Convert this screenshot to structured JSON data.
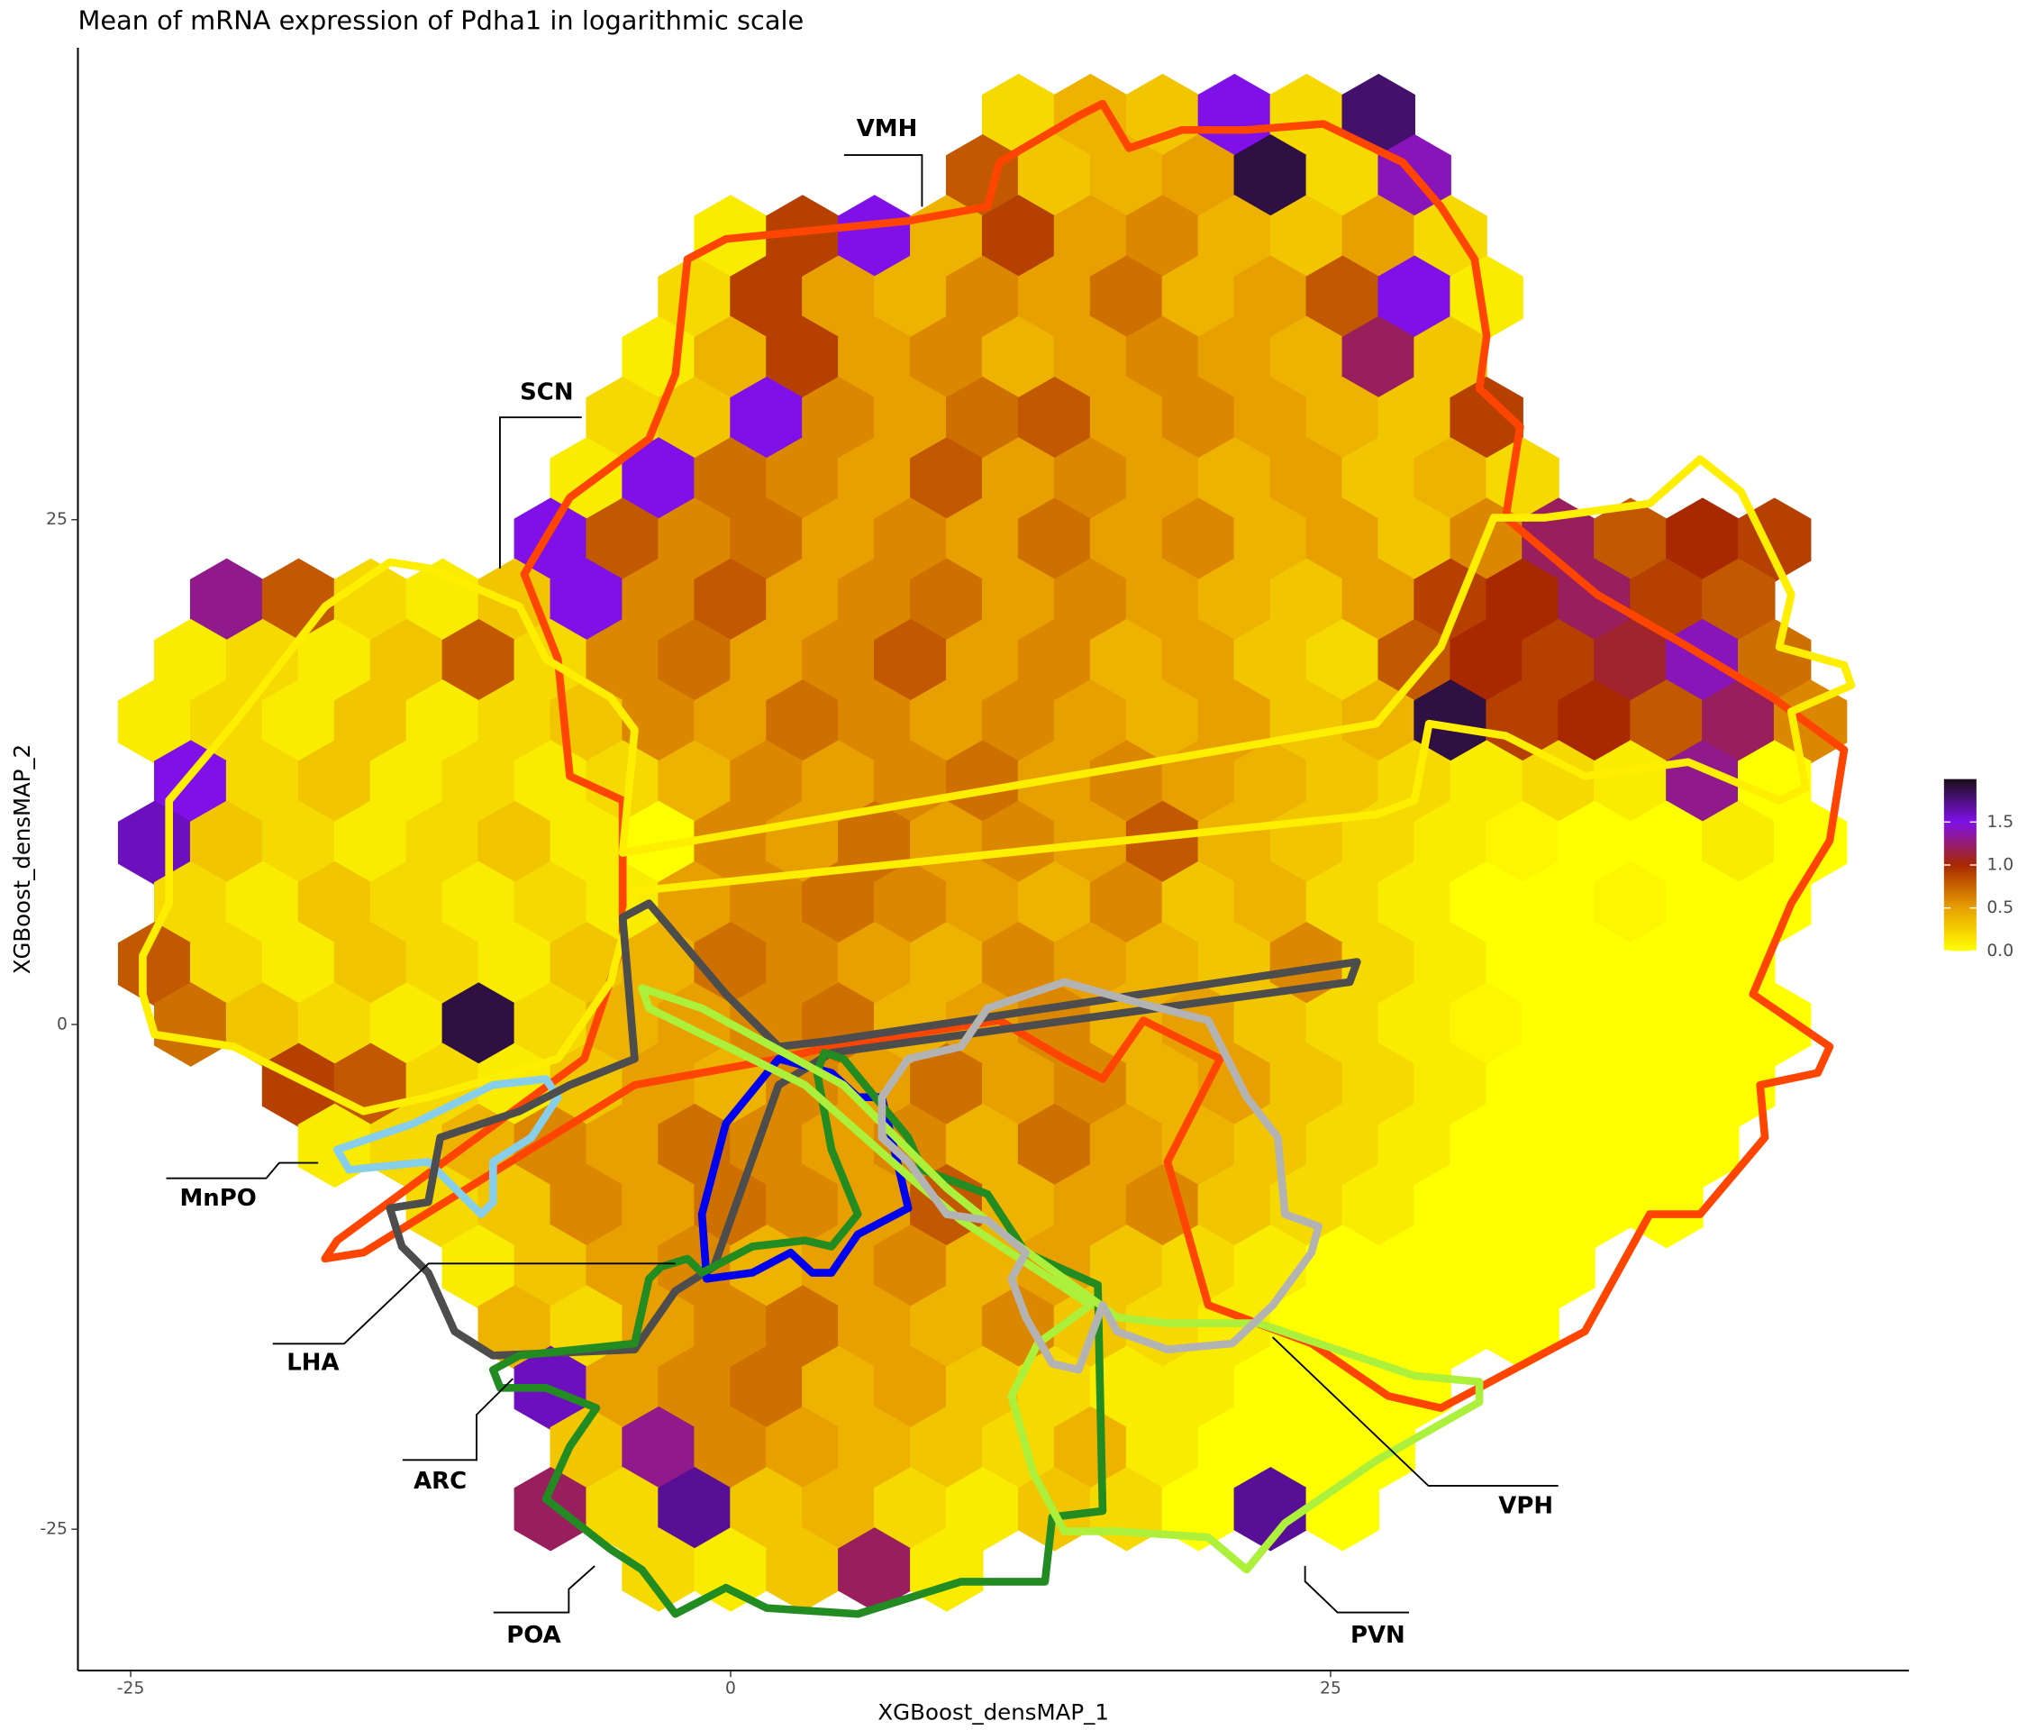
{
  "chart_data": {
    "type": "hexbin",
    "title": "Mean of mRNA expression of Pdha1 in logarithmic scale",
    "x_label": "XGBoost_densMAP_1",
    "y_label": "XGBoost_densMAP_2",
    "xlim": [
      -27.2,
      49.1
    ],
    "ylim": [
      -32,
      48.5
    ],
    "xticks": [
      -25,
      0,
      25
    ],
    "yticks": [
      -25,
      0,
      25
    ],
    "grid": false,
    "binwidth": [
      3,
      3
    ],
    "clim": [
      0,
      2
    ],
    "colorscale": [
      "#ffff00",
      "#e8a000",
      "#a82800",
      "#8010e8",
      "#1a1018"
    ],
    "cticks": [
      {
        "value": 0,
        "label": "0.0"
      },
      {
        "value": 0.5,
        "label": "0.5"
      },
      {
        "value": 1,
        "label": "1.0"
      },
      {
        "value": 1.5,
        "label": "1.5"
      }
    ],
    "legend_position": "right",
    "rows": [
      {
        "y": 45,
        "x0": 12,
        "values": [
          0.2,
          0.4,
          0.3,
          1.5,
          0.2,
          1.8
        ]
      },
      {
        "y": 42,
        "x0": 10.5,
        "values": [
          0.8,
          0.3,
          0.4,
          0.5,
          1.9,
          0.2,
          1.4
        ]
      },
      {
        "y": 39,
        "x0": 0,
        "values": [
          0.1,
          0.9,
          1.5,
          0.4,
          0.9,
          0.5,
          0.6,
          0.4,
          0.3,
          0.5,
          0.2
        ]
      },
      {
        "y": 36,
        "x0": -1.5,
        "values": [
          0.2,
          0.9,
          0.5,
          0.4,
          0.6,
          0.5,
          0.7,
          0.4,
          0.5,
          0.8,
          1.5,
          0.1
        ]
      },
      {
        "y": 33,
        "x0": -3,
        "values": [
          0.1,
          0.4,
          0.9,
          0.5,
          0.6,
          0.4,
          0.5,
          0.6,
          0.5,
          0.4,
          1.2,
          0.3
        ]
      },
      {
        "y": 30,
        "x0": -4.5,
        "values": [
          0.2,
          0.3,
          1.5,
          0.6,
          0.5,
          0.7,
          0.8,
          0.5,
          0.6,
          0.5,
          0.4,
          0.3,
          0.9
        ]
      },
      {
        "y": 27,
        "x0": -6,
        "values": [
          0.1,
          1.5,
          0.7,
          0.6,
          0.5,
          0.8,
          0.5,
          0.6,
          0.5,
          0.4,
          0.5,
          0.3,
          0.4,
          0.2
        ]
      },
      {
        "y": 24,
        "x0": -7.5,
        "values": [
          1.5,
          0.8,
          0.6,
          0.7,
          0.5,
          0.6,
          0.5,
          0.7,
          0.5,
          0.6,
          0.4,
          0.5,
          0.3,
          0.6,
          1.2,
          0.8,
          1.0,
          0.9
        ]
      },
      {
        "y": 21,
        "x0": -21,
        "values": [
          1.3,
          0.8,
          0.2,
          0.1,
          0.3,
          1.5,
          0.6,
          0.8,
          0.5,
          0.6,
          0.7,
          0.5,
          0.6,
          0.5,
          0.4,
          0.3,
          0.5,
          0.9,
          1.0,
          1.2,
          0.9,
          0.8
        ]
      },
      {
        "y": 18,
        "x0": -22.5,
        "values": [
          0.1,
          0.2,
          0.1,
          0.3,
          0.8,
          0.2,
          0.6,
          0.7,
          0.5,
          0.6,
          0.8,
          0.5,
          0.6,
          0.4,
          0.5,
          0.3,
          0.2,
          0.8,
          1.0,
          0.9,
          1.1,
          1.4,
          0.7
        ]
      },
      {
        "y": 15,
        "x0": -24,
        "values": [
          0.1,
          0.2,
          0.1,
          0.3,
          0.1,
          0.2,
          0.3,
          0.6,
          0.5,
          0.7,
          0.6,
          0.5,
          0.6,
          0.5,
          0.4,
          0.5,
          0.3,
          0.4,
          1.9,
          0.9,
          1.0,
          0.8,
          1.2,
          0.6
        ]
      },
      {
        "y": 12,
        "x0": -22.5,
        "values": [
          1.5,
          0.2,
          0.3,
          0.1,
          0.2,
          0.1,
          0.2,
          0.4,
          0.6,
          0.5,
          0.6,
          0.7,
          0.5,
          0.6,
          0.5,
          0.4,
          0.3,
          0.2,
          0.1,
          0.2,
          0.1,
          1.3,
          0
        ]
      },
      {
        "y": 9,
        "x0": -24,
        "values": [
          1.6,
          0.3,
          0.2,
          0.1,
          0.2,
          0.3,
          0.1,
          0,
          0.6,
          0.5,
          0.7,
          0.5,
          0.6,
          0.5,
          0.8,
          0.4,
          0.3,
          0.2,
          0.1,
          0.05,
          0,
          0,
          0.1,
          0
        ]
      },
      {
        "y": 6,
        "x0": -22.5,
        "values": [
          0.2,
          0.1,
          0.3,
          0.2,
          0.1,
          0.2,
          0.1,
          0.5,
          0.6,
          0.7,
          0.6,
          0.5,
          0.4,
          0.6,
          0.3,
          0.4,
          0.2,
          0.1,
          0,
          0,
          0.05,
          0,
          0
        ]
      },
      {
        "y": 3,
        "x0": -24,
        "values": [
          0.8,
          0.2,
          0.1,
          0.3,
          0.2,
          0.1,
          0.3,
          0.4,
          0.7,
          0.6,
          0.5,
          0.4,
          0.6,
          0.5,
          0.4,
          0.3,
          0.6,
          0.2,
          0.1,
          0,
          0,
          0,
          0
        ]
      },
      {
        "y": 0,
        "x0": -22.5,
        "values": [
          0.7,
          0.3,
          0.2,
          0.1,
          1.9,
          0.2,
          0.4,
          0.5,
          0.6,
          0.7,
          0.4,
          0.5,
          0.6,
          0.4,
          0.5,
          0.3,
          0.2,
          0.1,
          0.05,
          0,
          0,
          0,
          0
        ]
      },
      {
        "y": -3,
        "x0": -18,
        "values": [
          0.9,
          0.8,
          0.2,
          0.1,
          0.3,
          0.5,
          0.4,
          0.6,
          0.5,
          0.7,
          0.5,
          0.6,
          0.4,
          0.5,
          0.3,
          0.2,
          0.1,
          0,
          0,
          0,
          0
        ]
      },
      {
        "y": -6,
        "x0": -16.5,
        "values": [
          0.1,
          0.2,
          0.4,
          0.6,
          0.5,
          0.7,
          0.6,
          0.5,
          0.6,
          0.4,
          0.7,
          0.5,
          0.4,
          0.3,
          0.2,
          0.1,
          0,
          0,
          0,
          0
        ]
      },
      {
        "y": -9,
        "x0": -12,
        "values": [
          0.2,
          0.3,
          0.6,
          0.5,
          0.7,
          0.6,
          0.5,
          0.8,
          0.4,
          0.5,
          0.6,
          0.3,
          0.2,
          0.1,
          0,
          0,
          0,
          0
        ]
      },
      {
        "y": -12,
        "x0": -10.5,
        "values": [
          0.1,
          0.3,
          0.5,
          0.6,
          0.4,
          0.5,
          0.6,
          0.4,
          0.5,
          0.3,
          0.2,
          0.1,
          0,
          0,
          0,
          0
        ]
      },
      {
        "y": -15,
        "x0": -9,
        "values": [
          0.4,
          0.2,
          0.5,
          0.6,
          0.7,
          0.5,
          0.4,
          0.6,
          0.3,
          0.2,
          0.1,
          0,
          0,
          0,
          0
        ]
      },
      {
        "y": -18,
        "x0": -7.5,
        "values": [
          1.6,
          0.5,
          0.6,
          0.7,
          0.4,
          0.5,
          0.3,
          0.2,
          0.1,
          0.1,
          0,
          0,
          0
        ]
      },
      {
        "y": -21,
        "x0": -6,
        "values": [
          0.3,
          1.3,
          0.6,
          0.5,
          0.4,
          0.3,
          0.2,
          0.4,
          0.1,
          0,
          0,
          0
        ]
      },
      {
        "y": -24,
        "x0": -7.5,
        "values": [
          1.2,
          0.2,
          1.7,
          0.3,
          0.4,
          0.2,
          0.1,
          0.3,
          0.2,
          0,
          1.7,
          0
        ]
      },
      {
        "y": -27,
        "x0": -3,
        "values": [
          0.2,
          0.1,
          0.3,
          1.2,
          0.1
        ]
      }
    ],
    "regions": [
      {
        "name": "VMH",
        "color": "#ff4500",
        "x": [
          -8.6,
          -6.7,
          -3.4,
          -2.3,
          -1.8,
          -0.2,
          7.4,
          10.7,
          11.2,
          14.5,
          15.5,
          16.6,
          18.8,
          21.5,
          24.7,
          28.0,
          29.6,
          31.0,
          31.5,
          31.2,
          32.9,
          32.3,
          36.1,
          39.9,
          43.4,
          46.4,
          45.8,
          44.2,
          42.6,
          45.8,
          45.3,
          42.9,
          43.1,
          40.4,
          38.3,
          35.6,
          29.6,
          27.4,
          24.2,
          19.9,
          18.2,
          20.4,
          17.2,
          15.5,
          13.9,
          11.2,
          4.2,
          2.0,
          -4.0,
          -15.3,
          -16.9,
          -16.4,
          -6.1,
          -4.5,
          -4.5,
          -6.7,
          -7.2
        ],
        "y": [
          22.3,
          26.1,
          29.0,
          32.2,
          37.9,
          38.9,
          39.8,
          40.5,
          42.7,
          45.0,
          45.6,
          43.4,
          44.3,
          44.3,
          44.6,
          42.7,
          40.5,
          37.9,
          34.1,
          31.5,
          29.6,
          25.1,
          21.3,
          18.7,
          16.2,
          13.6,
          9.1,
          6.0,
          1.5,
          -1.1,
          -2.4,
          -3.0,
          -5.6,
          -9.4,
          -9.4,
          -15.2,
          -19.0,
          -18.4,
          -15.8,
          -13.9,
          -6.8,
          -1.7,
          0.2,
          -2.7,
          -1.7,
          0.2,
          -1.1,
          -1.7,
          -3.0,
          -11.3,
          -11.6,
          -10.7,
          -1.7,
          4.0,
          11.1,
          12.3,
          18.1
        ]
      },
      {
        "name": "SCN",
        "color": "#ffee00",
        "x": [
          -24.5,
          -24.5,
          -23.4,
          -23.4,
          -20.7,
          -16.9,
          -14.2,
          -12.6,
          -8.8,
          -7.7,
          -5.0,
          -4.0,
          -4.5,
          26.9,
          29.6,
          31.8,
          33.9,
          38.3,
          40.4,
          42.1,
          44.2,
          43.7,
          46.4,
          46.7,
          44.2,
          44.8,
          43.7,
          39.9,
          35.6,
          32.3,
          29.1,
          28.5,
          26.9,
          -4.0,
          -5.0,
          -7.2,
          -12.6,
          -15.3,
          -17.5,
          -20.7,
          -24.0
        ],
        "y": [
          1.5,
          3.4,
          6.0,
          11.1,
          14.9,
          20.7,
          22.9,
          22.6,
          20.7,
          18.1,
          16.2,
          14.6,
          8.5,
          14.9,
          18.7,
          25.1,
          25.1,
          25.8,
          28.0,
          26.4,
          21.3,
          18.7,
          17.8,
          16.8,
          15.5,
          11.7,
          11.1,
          13.0,
          12.3,
          14.3,
          14.9,
          11.1,
          10.4,
          6.6,
          2.1,
          -1.7,
          -3.6,
          -4.3,
          -3.0,
          -1.1,
          -0.5
        ]
      },
      {
        "name": "MnPO",
        "color": "#87ceeb",
        "x": [
          -16.4,
          -13.2,
          -9.9,
          -7.7,
          -7.2,
          -8.3,
          -9.9,
          -9.9,
          -10.4,
          -11.5,
          -12.6,
          -15.9
        ],
        "y": [
          -6.2,
          -4.9,
          -3.0,
          -2.7,
          -3.6,
          -5.6,
          -6.8,
          -8.8,
          -9.4,
          -8.1,
          -6.8,
          -7.2
        ]
      },
      {
        "name": "LHA",
        "color": "#4d4d4d",
        "x": [
          -4.5,
          -4.0,
          -6.7,
          -8.8,
          -12.1,
          -12.6,
          -14.2,
          -13.7,
          -12.6,
          -11.5,
          -9.9,
          -4.0,
          -2.3,
          -0.7,
          2.0,
          4.2,
          25.8,
          26.1,
          4.2,
          2.0,
          -0.2,
          -3.4
        ],
        "y": [
          5.3,
          -1.7,
          -3.0,
          -4.3,
          -5.6,
          -8.8,
          -9.1,
          -11.0,
          -12.3,
          -15.2,
          -16.4,
          -16.1,
          -13.2,
          -12.0,
          -3.0,
          -1.4,
          2.1,
          3.1,
          -0.8,
          -1.1,
          1.5,
          6.0
        ]
      },
      {
        "name": "ARC",
        "color": "#0000ee",
        "x": [
          -0.2,
          2.0,
          4.2,
          5.3,
          6.3,
          7.4,
          5.3,
          4.2,
          3.4,
          2.5,
          0.9,
          -1.0,
          -1.2
        ],
        "y": [
          -4.9,
          -1.7,
          -2.4,
          -3.6,
          -3.6,
          -9.1,
          -10.4,
          -12.3,
          -12.3,
          -11.3,
          -12.3,
          -12.6,
          -9.4
        ]
      },
      {
        "name": "POA",
        "color": "#228b22",
        "x": [
          -9.9,
          -8.8,
          -4.0,
          -3.4,
          -2.9,
          -1.8,
          -1.2,
          0.9,
          3.1,
          4.2,
          5.3,
          4.2,
          3.6,
          3.9,
          4.7,
          7.4,
          8.0,
          10.7,
          12.3,
          15.3,
          15.5,
          13.4,
          13.1,
          9.6,
          6.9,
          5.3,
          1.5,
          -0.2,
          -2.3,
          -3.7,
          -5.0,
          -7.7,
          -6.7,
          -5.6,
          -7.7,
          -9.6
        ],
        "y": [
          -17.1,
          -16.4,
          -15.8,
          -12.6,
          -12.0,
          -11.6,
          -12.3,
          -11.0,
          -10.7,
          -11.0,
          -9.4,
          -6.2,
          -2.4,
          -1.4,
          -1.7,
          -5.6,
          -7.2,
          -8.4,
          -11.3,
          -12.9,
          -24.1,
          -24.4,
          -27.6,
          -27.6,
          -28.6,
          -29.2,
          -28.9,
          -27.9,
          -29.2,
          -27.0,
          -26.0,
          -23.5,
          -20.9,
          -19.0,
          -18.0,
          -18.0
        ]
      },
      {
        "name": "PVN",
        "color": "#adf03c",
        "x": [
          -3.7,
          -1.2,
          4.7,
          9.0,
          11.7,
          16.1,
          18.2,
          22.0,
          28.5,
          31.2,
          31.2,
          26.9,
          23.1,
          21.5,
          19.9,
          16.1,
          13.9,
          12.6,
          11.7,
          12.8,
          15.0,
          9.6,
          7.4,
          3.1,
          -3.4
        ],
        "y": [
          1.8,
          0.8,
          -3.0,
          -8.1,
          -10.7,
          -14.5,
          -14.8,
          -14.8,
          -17.4,
          -17.7,
          -18.7,
          -21.6,
          -24.7,
          -27.0,
          -25.4,
          -25.1,
          -25.1,
          -22.2,
          -18.4,
          -15.8,
          -13.9,
          -9.7,
          -7.5,
          -3.0,
          0.8
        ]
      },
      {
        "name": "VPH",
        "color": "#b3b3b3",
        "x": [
          6.3,
          7.4,
          9.6,
          10.7,
          13.9,
          16.6,
          19.9,
          20.7,
          21.5,
          22.8,
          23.1,
          24.5,
          24.2,
          22.6,
          20.9,
          18.2,
          16.1,
          15.5,
          14.5,
          13.4,
          12.3,
          11.7,
          12.3,
          10.7,
          9.0,
          7.4,
          6.3
        ],
        "y": [
          -3.6,
          -1.7,
          -1.1,
          0.8,
          2.1,
          1.2,
          0.2,
          -1.7,
          -3.6,
          -5.6,
          -9.4,
          -10.0,
          -11.3,
          -13.9,
          -15.8,
          -16.1,
          -15.2,
          -13.9,
          -17.1,
          -16.8,
          -14.5,
          -12.6,
          -11.3,
          -9.7,
          -9.4,
          -6.8,
          -5.6
        ]
      }
    ]
  }
}
